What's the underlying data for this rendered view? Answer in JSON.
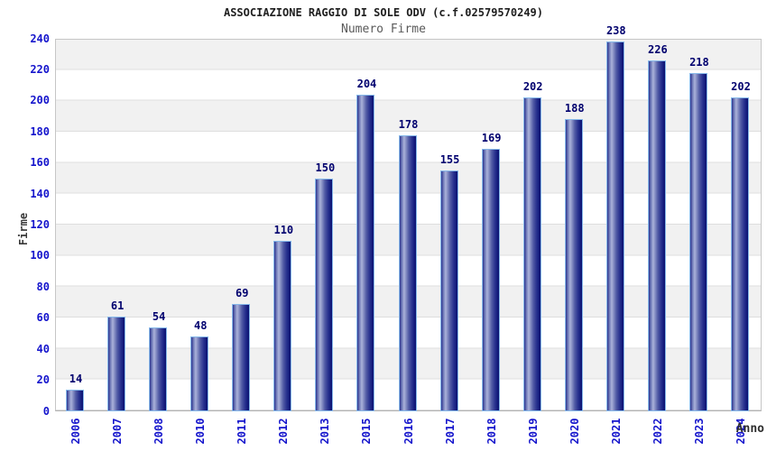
{
  "chart_data": {
    "type": "bar",
    "title": "ASSOCIAZIONE RAGGIO DI SOLE ODV (c.f.02579570249)",
    "subtitle": "Numero Firme",
    "xlabel": "Anno",
    "ylabel": "Firme",
    "categories": [
      "2006",
      "2007",
      "2008",
      "2010",
      "2011",
      "2012",
      "2013",
      "2015",
      "2016",
      "2017",
      "2018",
      "2019",
      "2020",
      "2021",
      "2022",
      "2023",
      "2024"
    ],
    "values": [
      14,
      61,
      54,
      48,
      69,
      110,
      150,
      204,
      178,
      155,
      169,
      202,
      188,
      238,
      226,
      218,
      202
    ],
    "ylim": [
      0,
      240
    ],
    "ytick_step": 20,
    "yticks": [
      0,
      20,
      40,
      60,
      80,
      100,
      120,
      140,
      160,
      180,
      200,
      220,
      240
    ],
    "grid": "horizontal-bands",
    "legend_position": "none",
    "colors": {
      "tick_label": "#1414cc",
      "value_label": "#00006e",
      "bar_dark": "#0e1470",
      "bar_highlight": "#aab2da",
      "bar_border": "#87b9ea",
      "band_gray": "#f1f1f1",
      "band_white": "#ffffff",
      "gridline": "#dedede",
      "title": "#1e1e1e",
      "subtitle": "#5a5a5a",
      "axis_title": "#383838"
    }
  }
}
